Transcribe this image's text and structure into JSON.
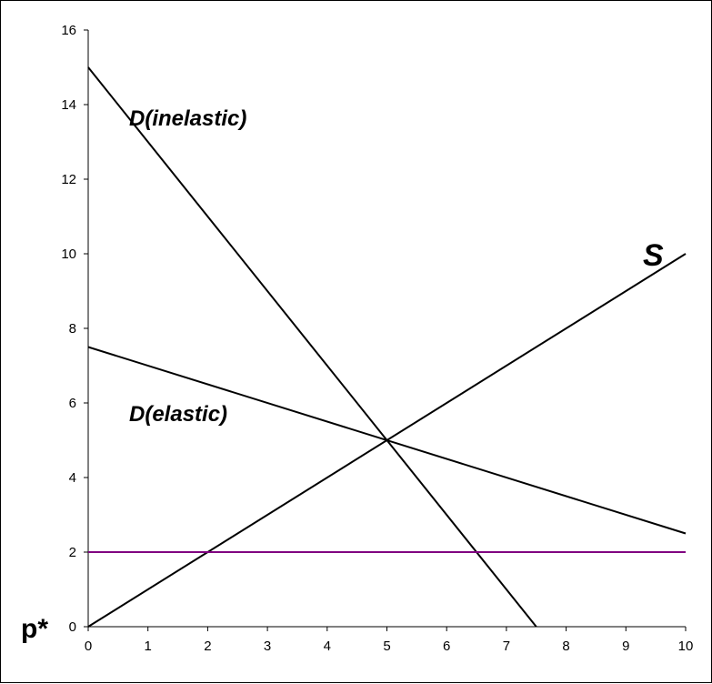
{
  "chart_data": {
    "type": "line",
    "title": "",
    "xlabel": "",
    "ylabel": "",
    "xlim": [
      0,
      10
    ],
    "ylim": [
      0,
      16
    ],
    "x_ticks": [
      0,
      1,
      2,
      3,
      4,
      5,
      6,
      7,
      8,
      9,
      10
    ],
    "y_ticks": [
      0,
      2,
      4,
      6,
      8,
      10,
      12,
      14,
      16
    ],
    "grid": false,
    "legend": "none",
    "series": [
      {
        "label": "D(inelastic)",
        "color": "#000000",
        "x": [
          0,
          7.5
        ],
        "y": [
          15,
          0
        ]
      },
      {
        "label": "D(elastic)",
        "color": "#000000",
        "x": [
          0,
          10
        ],
        "y": [
          7.5,
          2.5
        ]
      },
      {
        "label": "S",
        "color": "#000000",
        "x": [
          0,
          10
        ],
        "y": [
          0,
          10
        ]
      },
      {
        "label": "p*",
        "color": "#800080",
        "x": [
          0,
          10
        ],
        "y": [
          2,
          2
        ]
      }
    ]
  }
}
